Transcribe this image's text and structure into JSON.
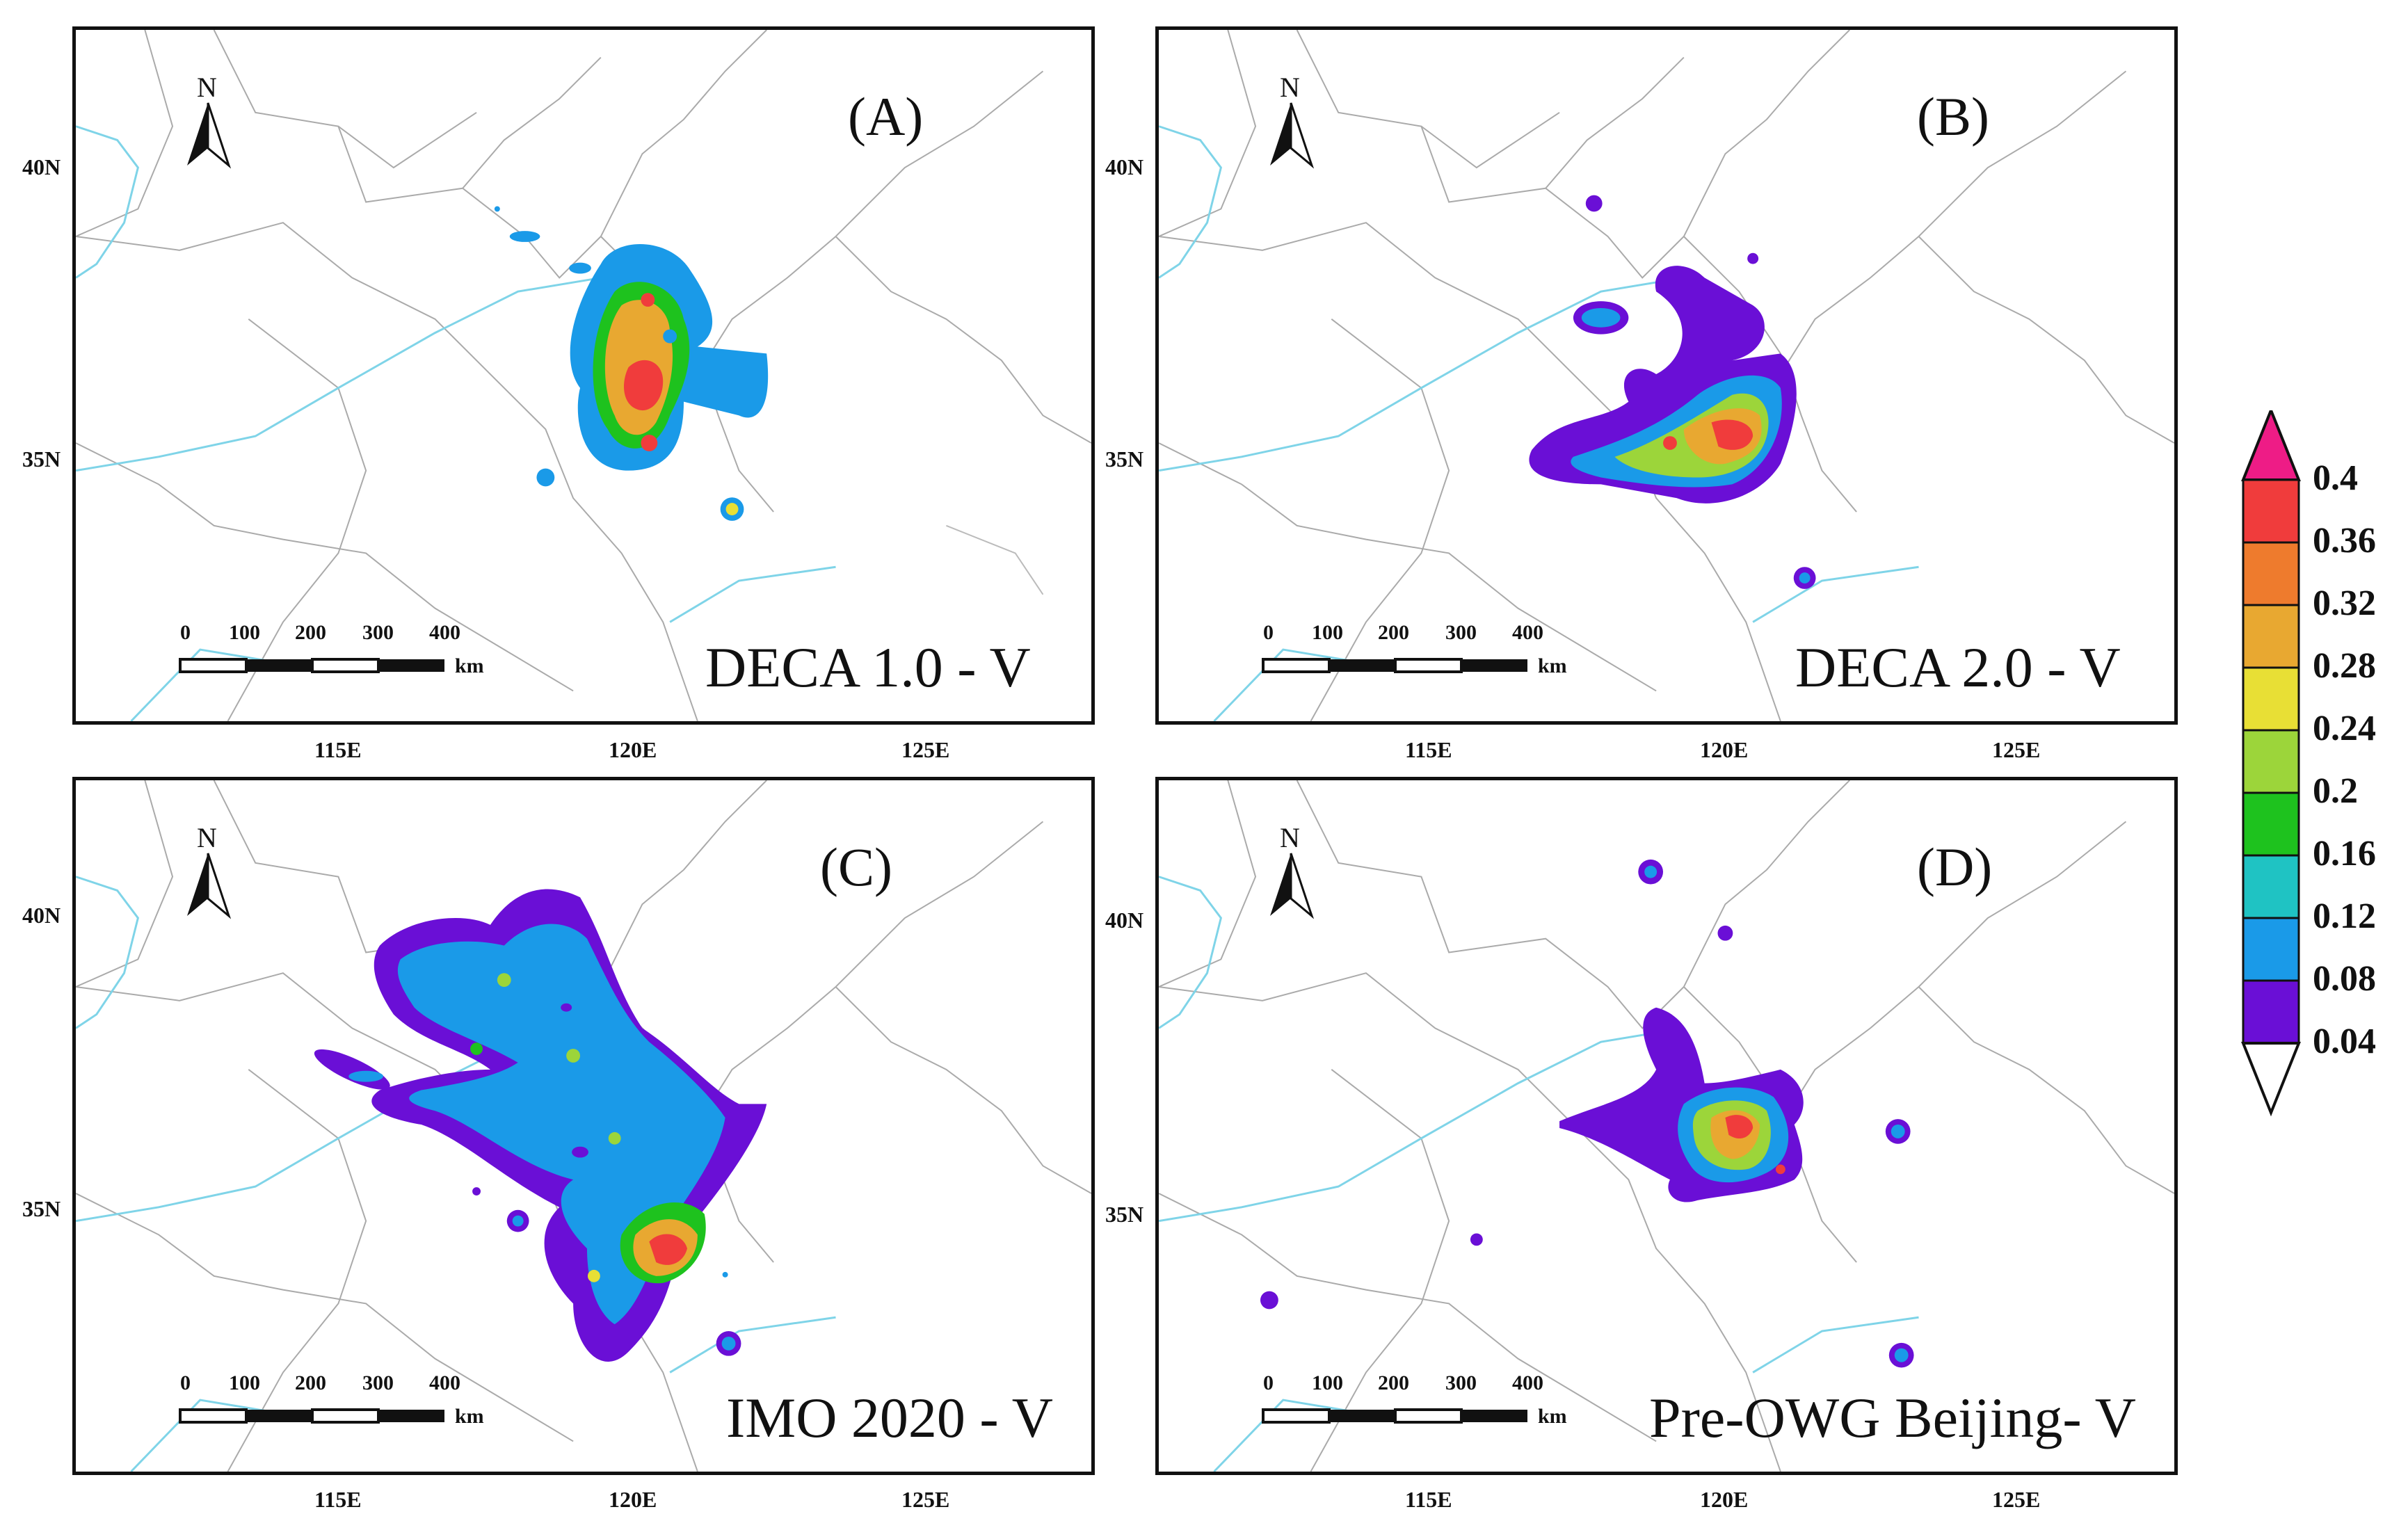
{
  "panels": [
    {
      "id": "A",
      "label": "(A)",
      "scenario": "DECA 1.0 - V"
    },
    {
      "id": "B",
      "label": "(B)",
      "scenario": "DECA 2.0 - V"
    },
    {
      "id": "C",
      "label": "(C)",
      "scenario": "IMO 2020 - V"
    },
    {
      "id": "D",
      "label": "(D)",
      "scenario": "Pre-OWG Beijing- V"
    }
  ],
  "axes": {
    "lon_labels": [
      "115E",
      "120E",
      "125E"
    ],
    "lat_labels": [
      "40N",
      "35N"
    ]
  },
  "north_arrow": {
    "letter": "N"
  },
  "scale_bar": {
    "ticks": [
      "0",
      "100",
      "200",
      "300",
      "400"
    ],
    "unit": "km"
  },
  "colorbar": {
    "labels": [
      "0.4",
      "0.36",
      "0.32",
      "0.28",
      "0.24",
      "0.2",
      "0.16",
      "0.12",
      "0.08",
      "0.04"
    ],
    "colors": [
      "#ee1c86",
      "#f03c3c",
      "#ee7b2d",
      "#e8a831",
      "#e8df35",
      "#9cd53a",
      "#1ec21e",
      "#1fc3c3",
      "#1a9ae8",
      "#6a0fd6"
    ]
  }
}
